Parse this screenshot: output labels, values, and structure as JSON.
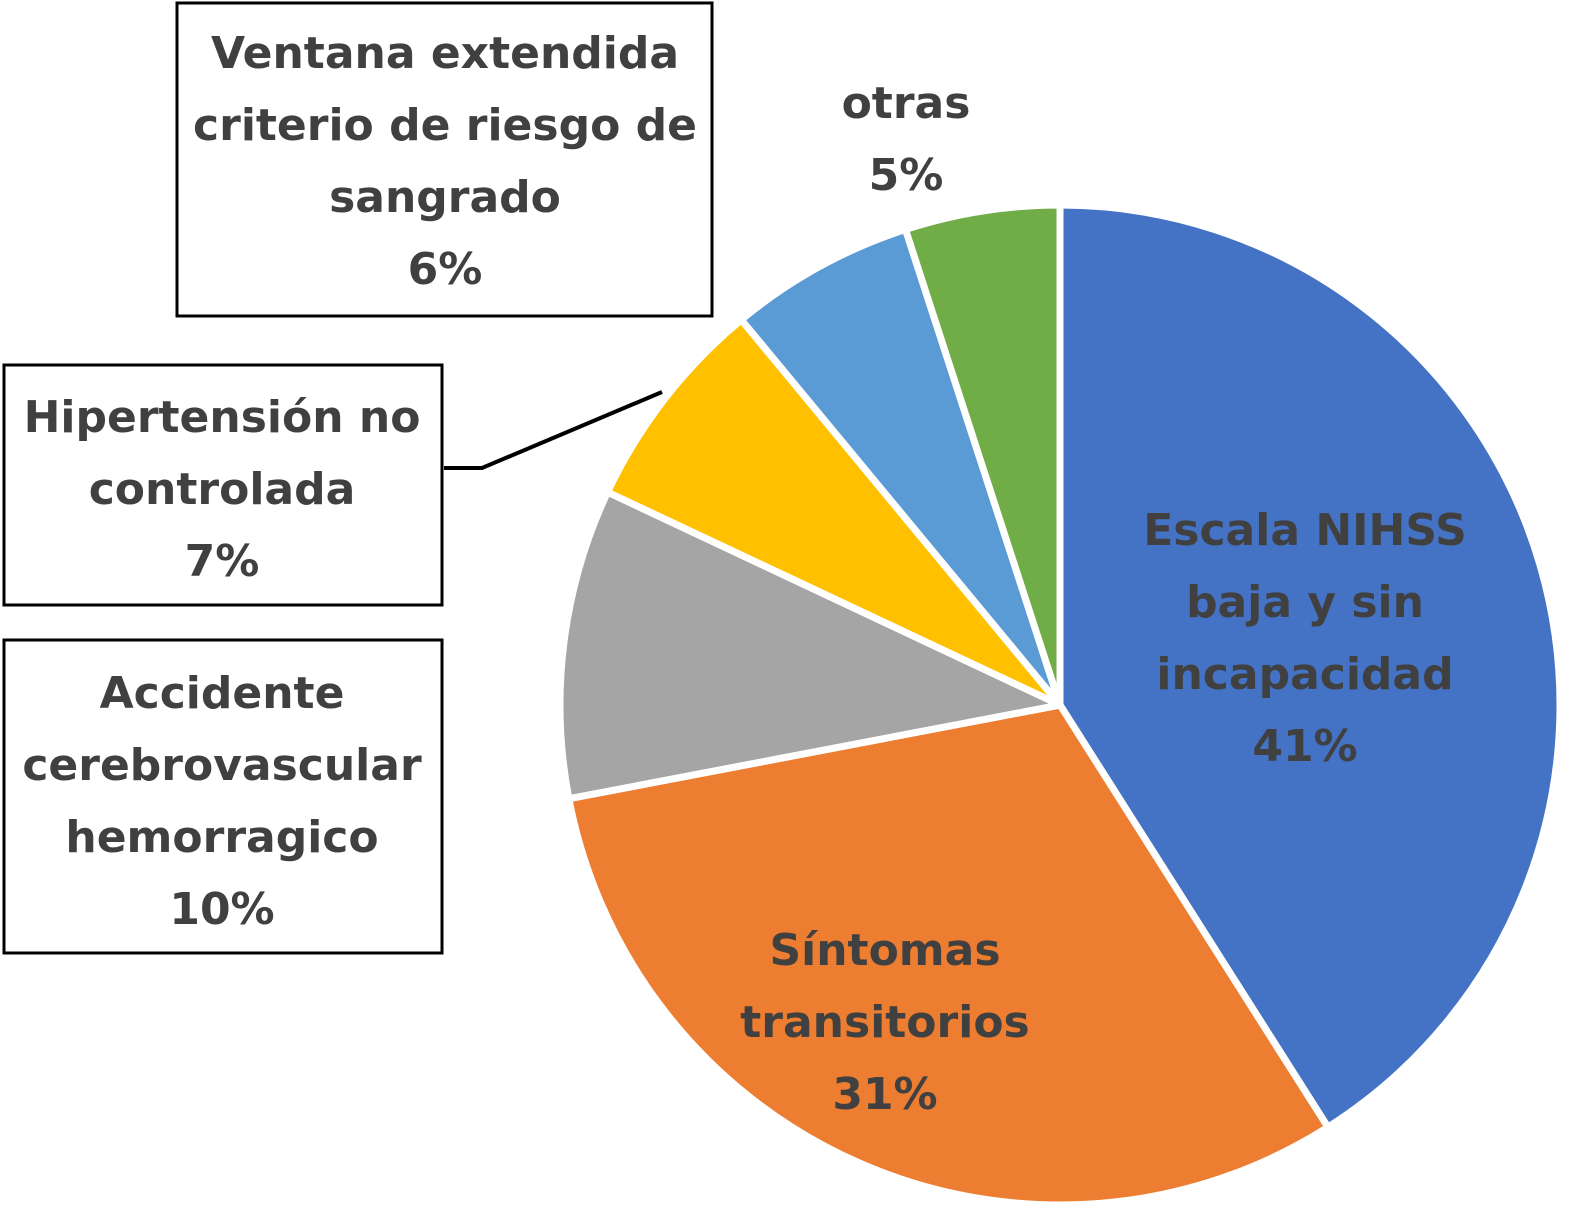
{
  "chart_data": {
    "type": "pie",
    "title": "",
    "slices": [
      {
        "label": "Escala NIHSS baja y sin incapacidad",
        "label_lines": [
          "Escala NIHSS",
          "baja y sin",
          "incapacidad"
        ],
        "value": 41,
        "pct_text": "41%",
        "color": "#4472C4"
      },
      {
        "label": "Síntomas transitorios",
        "label_lines": [
          "Síntomas",
          "transitorios"
        ],
        "value": 31,
        "pct_text": "31%",
        "color": "#ED7D31"
      },
      {
        "label": "Accidente cerebrovascular hemorragico",
        "label_lines": [
          "Accidente",
          "cerebrovascular",
          "hemorragico"
        ],
        "value": 10,
        "pct_text": "10%",
        "color": "#A5A5A5"
      },
      {
        "label": "Hipertensión no controlada",
        "label_lines": [
          "Hipertensión no",
          "controlada"
        ],
        "value": 7,
        "pct_text": "7%",
        "color": "#FFC000"
      },
      {
        "label": "Ventana extendida criterio de riesgo de sangrado",
        "label_lines": [
          "Ventana extendida",
          "criterio de riesgo de",
          "sangrado"
        ],
        "value": 6,
        "pct_text": "6%",
        "color": "#5B9BD5"
      },
      {
        "label": "otras",
        "label_lines": [
          "otras"
        ],
        "value": 5,
        "pct_text": "5%",
        "color": "#70AD47"
      }
    ]
  }
}
